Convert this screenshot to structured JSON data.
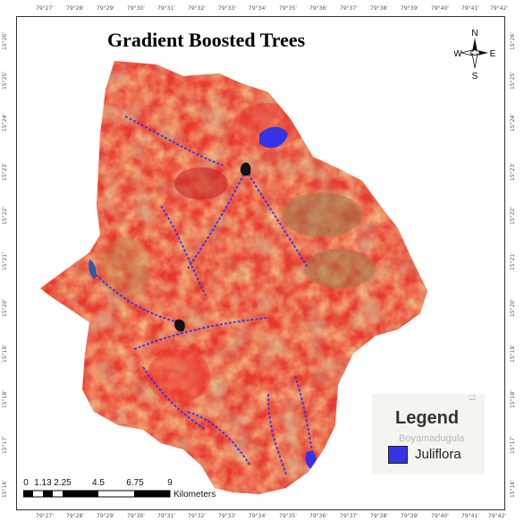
{
  "title": "Gradient Boosted Trees",
  "lon_ticks": [
    "79°27'",
    "79°28'",
    "79°29'",
    "79°30'",
    "79°31'",
    "79°32'",
    "79°33'",
    "79°34'",
    "79°35'",
    "79°36'",
    "79°37'",
    "79°38'",
    "79°39'",
    "79°40'",
    "79°41'",
    "79°42'"
  ],
  "lat_ticks": [
    "15°26'",
    "15°25'",
    "15°24'",
    "15°23'",
    "15°22'",
    "15°21'",
    "15°20'",
    "15°19'",
    "15°18'",
    "15°17'",
    "15°16'"
  ],
  "north_arrow": {
    "n": "N",
    "s": "S",
    "e": "E",
    "w": "W"
  },
  "legend": {
    "title": "Legend",
    "item_label": "Juliflora",
    "item_color": "#3434e6",
    "basemap_text_1": "Boyamadugula",
    "basemap_text_2": "ය"
  },
  "scale": {
    "labels": [
      "0",
      "1.13",
      "2.25",
      "4.5",
      "6.75",
      "9"
    ],
    "unit": "Kilometers"
  },
  "colors": {
    "high": "#e8392f",
    "mid": "#e89a44",
    "low": "#9b7a4a",
    "juliflora": "#3434e6"
  }
}
